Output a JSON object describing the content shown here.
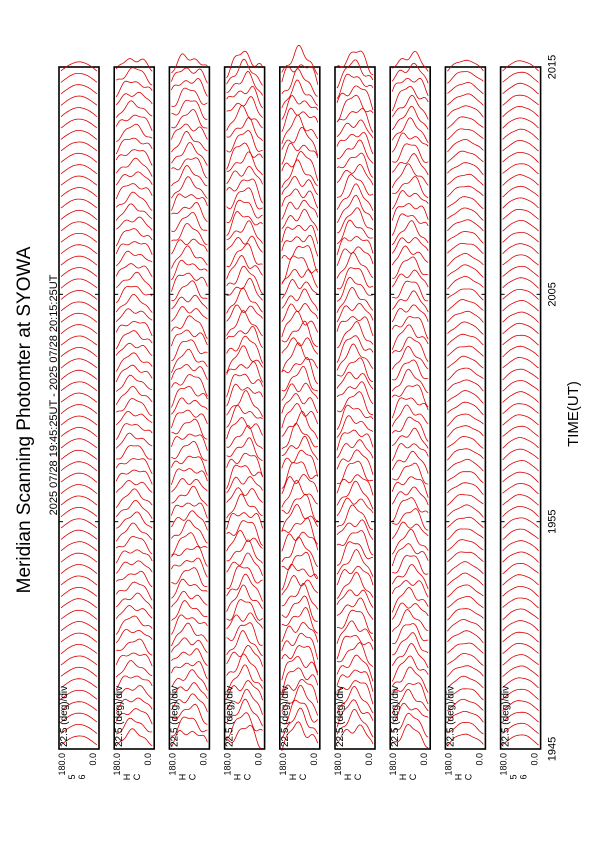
{
  "title": "Meridian Scanning Photomter at SYOWA",
  "time_range": "2025 07/28 19:45:25UT - 2025 07/28 20:15:25UT",
  "xlabel": "TIME(UT)",
  "colors": {
    "trace": "#dd0000",
    "frame": "#000000",
    "background": "#ffffff"
  },
  "chart_data": {
    "type": "line",
    "title": "Meridian Scanning Photomter at SYOWA",
    "subtitle": "2025 07/28 19:45:25UT - 2025 07/28 20:15:25UT",
    "xlabel": "TIME(UT)",
    "x_ticks": [
      "1945",
      "1955",
      "2005",
      "2015"
    ],
    "x_range": [
      "19:45:25",
      "20:15:25"
    ],
    "scale_label": "22.5 (deg)/div",
    "y_range": [
      0.0,
      180.0
    ],
    "y_ticks": [
      "180.0",
      "0.0"
    ],
    "grid": false,
    "traces_per_panel": 60,
    "panels": [
      {
        "channel": "CH1",
        "label_top": "5",
        "label_bottom": "6",
        "amplitude": 0.25,
        "variability": 0.02
      },
      {
        "channel": "CH2",
        "label_top": "H",
        "label_bottom": "C",
        "amplitude": 0.35,
        "variability": 0.35
      },
      {
        "channel": "CH3",
        "label_top": "H",
        "label_bottom": "C",
        "amplitude": 0.4,
        "variability": 0.45
      },
      {
        "channel": "CH4",
        "label_top": "H",
        "label_bottom": "C",
        "amplitude": 0.45,
        "variability": 0.5
      },
      {
        "channel": "CH5",
        "label_top": "H",
        "label_bottom": "C",
        "amplitude": 0.5,
        "variability": 0.5
      },
      {
        "channel": "CH6",
        "label_top": "H",
        "label_bottom": "C",
        "amplitude": 0.5,
        "variability": 0.4
      },
      {
        "channel": "CH7",
        "label_top": "H",
        "label_bottom": "C",
        "amplitude": 0.45,
        "variability": 0.4
      },
      {
        "channel": "CH8",
        "label_top": "H",
        "label_bottom": "C",
        "amplitude": 0.3,
        "variability": 0.12
      },
      {
        "channel": "CH9",
        "label_top": "5",
        "label_bottom": "6",
        "amplitude": 0.28,
        "variability": 0.05
      }
    ]
  }
}
